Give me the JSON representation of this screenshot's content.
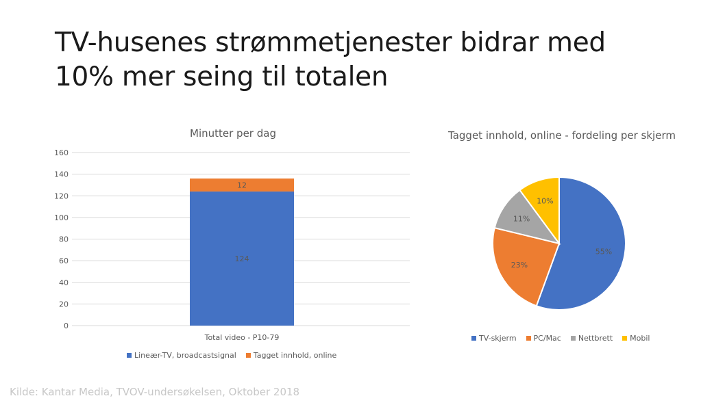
{
  "slide": {
    "title_line1": "TV-husenes strømmetjenester bidrar med",
    "title_line2": "10% mer seing til totalen",
    "source": "Kilde: Kantar Media, TVOV-undersøkelsen,  Oktober 2018"
  },
  "chart_data": [
    {
      "type": "bar",
      "stacked": true,
      "title": "Minutter per dag",
      "categories": [
        "Total video - P10-79"
      ],
      "series": [
        {
          "name": "Lineær-TV, broadcastsignal",
          "values": [
            124
          ],
          "color": "#4472C4"
        },
        {
          "name": "Tagget innhold, online",
          "values": [
            12
          ],
          "color": "#ED7D31"
        }
      ],
      "ylim": [
        0,
        160
      ],
      "yticks": [
        "0",
        "20",
        "40",
        "60",
        "80",
        "100",
        "120",
        "140",
        "160"
      ],
      "grid": true,
      "legend_position": "bottom"
    },
    {
      "type": "pie",
      "title": "Tagget innhold, online - fordeling per skjerm",
      "slices": [
        {
          "name": "TV-skjerm",
          "value": 55,
          "label": "55%",
          "color": "#4472C4"
        },
        {
          "name": "PC/Mac",
          "value": 23,
          "label": "23%",
          "color": "#ED7D31"
        },
        {
          "name": "Nettbrett",
          "value": 11,
          "label": "11%",
          "color": "#A5A5A5"
        },
        {
          "name": "Mobil",
          "value": 10,
          "label": "10%",
          "color": "#FFC000"
        }
      ],
      "legend_position": "bottom"
    }
  ]
}
